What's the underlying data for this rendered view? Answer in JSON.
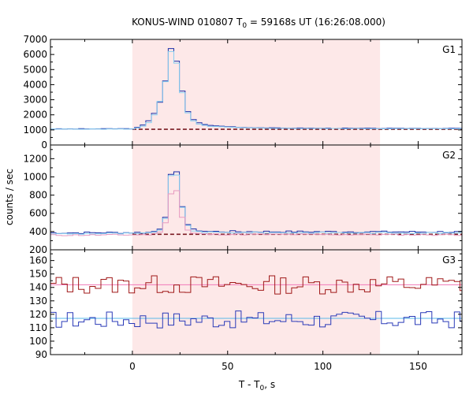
{
  "chart_data": {
    "type": "line",
    "title": "KONUS-WIND 010807 T",
    "title_sub": "0",
    "title_rest": " = 59168s UT (16:26:08.000)",
    "xlabel": "T - T",
    "xlabel_sub": "0",
    "xlabel_rest": ", s",
    "ylabel": "counts / sec",
    "xlim": [
      -43,
      173
    ],
    "xticks": [
      0,
      50,
      100,
      150
    ],
    "shaded_interval": [
      0,
      130
    ],
    "shade_color": "#fde8e8",
    "panels": [
      {
        "name": "G1",
        "ylim": [
          0,
          7000
        ],
        "yticks": [
          0,
          1000,
          2000,
          3000,
          4000,
          5000,
          6000,
          7000
        ],
        "background": {
          "value": 1040,
          "color": "#7a1a22"
        },
        "series": [
          {
            "color": "#1a2ea8",
            "bin": 2.944,
            "base": 1060,
            "noise": 15,
            "seed": 3,
            "peaks": [
              [
                -43,
                1060
              ],
              [
                0,
                1080
              ],
              [
                4,
                1200
              ],
              [
                8,
                1500
              ],
              [
                12,
                2200
              ],
              [
                15,
                3000
              ],
              [
                18,
                4600
              ],
              [
                20,
                6400
              ],
              [
                22,
                6300
              ],
              [
                24,
                5100
              ],
              [
                27,
                3000
              ],
              [
                30,
                1900
              ],
              [
                34,
                1500
              ],
              [
                40,
                1300
              ],
              [
                50,
                1220
              ],
              [
                60,
                1160
              ],
              [
                80,
                1120
              ],
              [
                130,
                1100
              ],
              [
                173,
                1100
              ]
            ]
          },
          {
            "color": "#87cef0",
            "bin": 2.944,
            "base": 1050,
            "noise": 12,
            "seed": 5,
            "peaks": [
              [
                -43,
                1050
              ],
              [
                0,
                1060
              ],
              [
                4,
                1150
              ],
              [
                8,
                1400
              ],
              [
                12,
                2100
              ],
              [
                15,
                3100
              ],
              [
                18,
                4500
              ],
              [
                20,
                6200
              ],
              [
                22,
                6100
              ],
              [
                24,
                5000
              ],
              [
                27,
                2900
              ],
              [
                30,
                1800
              ],
              [
                34,
                1400
              ],
              [
                40,
                1250
              ],
              [
                50,
                1180
              ],
              [
                60,
                1130
              ],
              [
                80,
                1100
              ],
              [
                130,
                1080
              ],
              [
                173,
                1080
              ]
            ]
          }
        ]
      },
      {
        "name": "G2",
        "ylim": [
          200,
          1350
        ],
        "yticks": [
          200,
          400,
          600,
          800,
          1000,
          1200
        ],
        "background": {
          "value": 370,
          "color": "#7a1a22"
        },
        "series": [
          {
            "color": "#1a2ea8",
            "bin": 2.944,
            "base": 385,
            "noise": 10,
            "seed": 7,
            "peaks": [
              [
                -43,
                385
              ],
              [
                10,
                390
              ],
              [
                14,
                420
              ],
              [
                17,
                520
              ],
              [
                19,
                780
              ],
              [
                21,
                1150
              ],
              [
                23,
                1080
              ],
              [
                25,
                800
              ],
              [
                28,
                500
              ],
              [
                32,
                420
              ],
              [
                40,
                400
              ],
              [
                173,
                395
              ]
            ]
          },
          {
            "color": "#87cef0",
            "bin": 2.944,
            "base": 375,
            "noise": 8,
            "seed": 9,
            "peaks": [
              [
                -43,
                375
              ],
              [
                10,
                380
              ],
              [
                14,
                410
              ],
              [
                17,
                500
              ],
              [
                19,
                760
              ],
              [
                21,
                1140
              ],
              [
                23,
                1060
              ],
              [
                25,
                780
              ],
              [
                28,
                480
              ],
              [
                32,
                410
              ],
              [
                40,
                390
              ],
              [
                173,
                385
              ]
            ]
          },
          {
            "color": "#e89ac0",
            "bin": 2.944,
            "base": 360,
            "noise": 8,
            "seed": 11,
            "peaks": [
              [
                -43,
                360
              ],
              [
                10,
                365
              ],
              [
                14,
                390
              ],
              [
                17,
                460
              ],
              [
                19,
                640
              ],
              [
                21,
                920
              ],
              [
                23,
                880
              ],
              [
                25,
                640
              ],
              [
                28,
                430
              ],
              [
                32,
                380
              ],
              [
                40,
                370
              ],
              [
                173,
                365
              ]
            ]
          }
        ]
      },
      {
        "name": "G3",
        "ylim": [
          90,
          168
        ],
        "yticks": [
          90,
          100,
          110,
          120,
          130,
          140,
          150,
          160
        ],
        "series": [
          {
            "color": "#a01818",
            "bin": 2.944,
            "base": 142,
            "noise": 7,
            "seed": 13,
            "peaks": []
          },
          {
            "color": "#2a3ab8",
            "bin": 2.944,
            "base": 116,
            "noise": 6.5,
            "seed": 17,
            "peaks": []
          }
        ],
        "fit_lines": [
          {
            "value": 142,
            "color": "#f078b8"
          },
          {
            "value": 117,
            "color": "#5ab8e8"
          }
        ]
      }
    ]
  }
}
